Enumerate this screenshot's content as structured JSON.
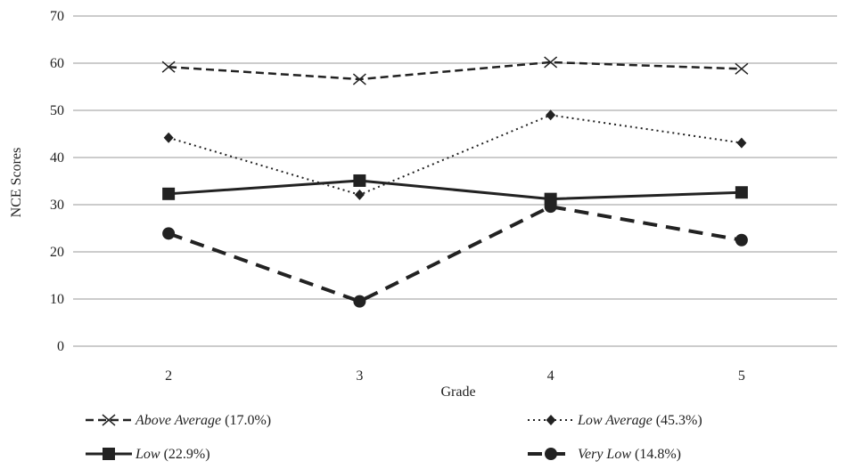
{
  "chart_data": {
    "type": "line",
    "title": "",
    "xlabel": "Grade",
    "ylabel": "NCE Scores",
    "categories": [
      "2",
      "3",
      "4",
      "5"
    ],
    "ylim": [
      0,
      70
    ],
    "yticks": [
      "0",
      "10",
      "20",
      "30",
      "40",
      "50",
      "60",
      "70"
    ],
    "grid": "horizontal",
    "legend_position": "bottom",
    "series": [
      {
        "name": "Above Average",
        "pct": "(17.0%)",
        "values": [
          59.2,
          56.6,
          60.2,
          58.8
        ],
        "marker": "x",
        "line": "dashed",
        "color": "#222222"
      },
      {
        "name": "Low Average",
        "pct": "(45.3%)",
        "values": [
          44.2,
          32.1,
          49.0,
          43.1
        ],
        "marker": "diamond",
        "line": "dotted",
        "color": "#222222"
      },
      {
        "name": "Low",
        "pct": "(22.9%)",
        "values": [
          32.3,
          35.1,
          31.2,
          32.6
        ],
        "marker": "square",
        "line": "solid",
        "color": "#222222"
      },
      {
        "name": "Very Low",
        "pct": "(14.8%)",
        "values": [
          23.9,
          9.5,
          29.6,
          22.5
        ],
        "marker": "circle",
        "line": "long-dashed",
        "color": "#222222"
      }
    ]
  }
}
